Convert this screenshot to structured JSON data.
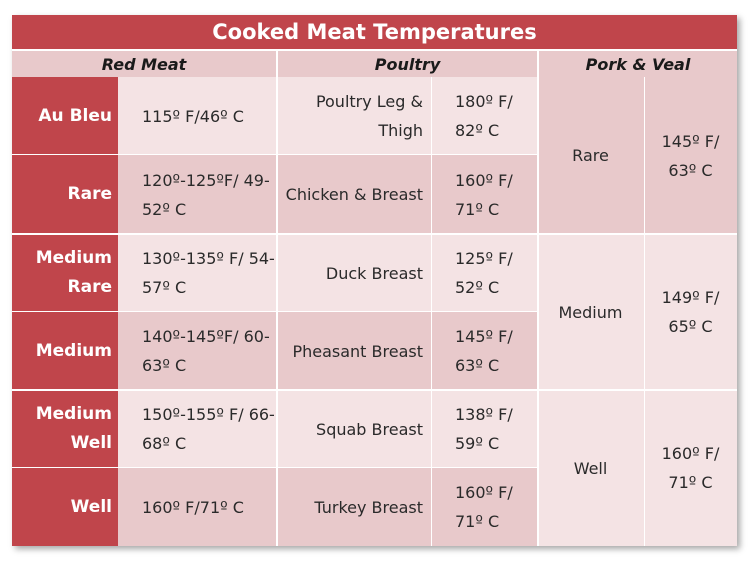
{
  "title": "Cooked Meat Temperatures",
  "headers": {
    "red_meat": "Red Meat",
    "poultry": "Poultry",
    "pork_veal": "Pork & Veal"
  },
  "rows": [
    {
      "label": "Au Bleu",
      "red": "115º F/46º C",
      "poultry_name": "Poultry Leg & Thigh",
      "poultry_temp": "180º F/ 82º C"
    },
    {
      "label": "Rare",
      "red": "120º-125ºF/ 49-52º C",
      "poultry_name": "Chicken & Breast",
      "poultry_temp": "160º F/ 71º C"
    },
    {
      "label": "Medium Rare",
      "red": "130º-135º F/ 54-57º C",
      "poultry_name": "Duck Breast",
      "poultry_temp": "125º F/ 52º C"
    },
    {
      "label": "Medium",
      "red": "140º-145ºF/ 60-63º C",
      "poultry_name": "Pheasant Breast",
      "poultry_temp": "145º F/ 63º C"
    },
    {
      "label": "Medium Well",
      "red": "150º-155º F/ 66-68º C",
      "poultry_name": "Squab Breast",
      "poultry_temp": "138º F/ 59º C"
    },
    {
      "label": "Well",
      "red": "160º F/71º C",
      "poultry_name": "Turkey Breast",
      "poultry_temp": "160º F/ 71º C"
    }
  ],
  "pork": [
    {
      "doneness": "Rare",
      "temp": "145º F/ 63º C"
    },
    {
      "doneness": "Medium",
      "temp": "149º F/ 65º C"
    },
    {
      "doneness": "Well",
      "temp": "160º F/ 71º C"
    }
  ]
}
